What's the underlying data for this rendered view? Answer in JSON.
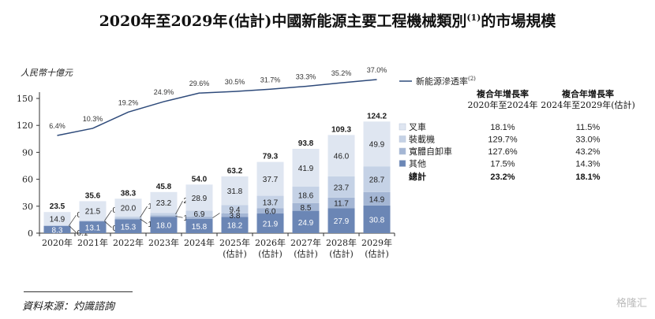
{
  "chart_data": {
    "type": "bar",
    "title": "2020年至2029年(估計)中國新能源主要工程機械類別",
    "title_sup": "(1)",
    "title_suffix": "的市場規模",
    "ylabel": "人民幣十億元",
    "ylim": [
      0,
      150
    ],
    "yticks": [
      0,
      30,
      60,
      90,
      120,
      150
    ],
    "categories": [
      "2020年",
      "2021年",
      "2022年",
      "2023年",
      "2024年",
      "2025年",
      "2026年",
      "2027年",
      "2028年",
      "2029年"
    ],
    "category_sub": [
      "",
      "",
      "",
      "",
      "",
      "(估計)",
      "(估計)",
      "(估計)",
      "(估計)",
      "(估計)"
    ],
    "totals": [
      23.5,
      35.6,
      38.3,
      45.8,
      54.0,
      63.2,
      79.3,
      93.8,
      109.3,
      124.2
    ],
    "series": [
      {
        "name": "其他",
        "color": "#6b86b5",
        "values": [
          8.3,
          13.1,
          15.3,
          18.0,
          15.8,
          18.2,
          21.9,
          24.9,
          27.9,
          30.8
        ]
      },
      {
        "name": "寬體自卸車",
        "color": "#a4b6d4",
        "values": [
          0.1,
          0.4,
          1.2,
          1.7,
          2.5,
          3.8,
          6.0,
          8.5,
          11.7,
          14.9
        ]
      },
      {
        "name": "裝載機",
        "color": "#c5d2e6",
        "values": [
          0.2,
          0.6,
          1.9,
          2.9,
          6.9,
          9.4,
          13.7,
          18.6,
          23.7,
          28.7
        ]
      },
      {
        "name": "叉車",
        "color": "#dfe6f1",
        "values": [
          14.9,
          21.5,
          20.0,
          23.2,
          28.9,
          31.8,
          37.7,
          41.9,
          46.0,
          49.9
        ]
      }
    ],
    "line": {
      "name": "新能源滲透率",
      "name_sup": "(2)",
      "values": [
        6.4,
        10.3,
        19.2,
        24.9,
        29.6,
        30.5,
        31.7,
        33.3,
        35.2,
        37.0
      ],
      "labels": [
        "6.4%",
        "10.3%",
        "19.2%",
        "24.9%",
        "29.6%",
        "30.5%",
        "31.7%",
        "33.3%",
        "35.2%",
        "37.0%"
      ],
      "color": "#2e4a7a"
    },
    "cagr_table": {
      "header1": [
        "複合年增長率",
        "2020年至2024年"
      ],
      "header2": [
        "複合年增長率",
        "2024年至2029年(估計)"
      ],
      "rows": [
        {
          "name": "叉車",
          "c1": "18.1%",
          "c2": "11.5%"
        },
        {
          "name": "裝載機",
          "c1": "129.7%",
          "c2": "33.0%"
        },
        {
          "name": "寬體自卸車",
          "c1": "127.6%",
          "c2": "43.2%"
        },
        {
          "name": "其他",
          "c1": "17.5%",
          "c2": "14.3%"
        }
      ],
      "total": {
        "name": "總計",
        "c1": "23.2%",
        "c2": "18.1%"
      }
    },
    "legend_position": "right"
  },
  "source": "資料來源：灼識諮詢",
  "watermark": "格隆汇"
}
